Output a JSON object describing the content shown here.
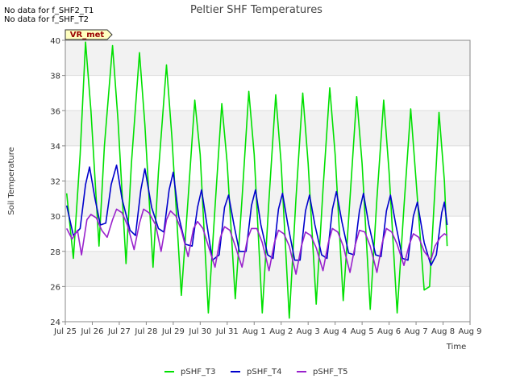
{
  "notes": [
    "No data for f_SHF2_T1",
    "No data for f_SHF_T2"
  ],
  "badge": "VR_met",
  "chart_data": {
    "type": "line",
    "title": "Peltier SHF Temperatures",
    "xlabel": "Time",
    "ylabel": "Soil Temperature",
    "xlim": [
      0,
      15
    ],
    "ylim": [
      24,
      40
    ],
    "yticks": [
      24,
      26,
      28,
      30,
      32,
      34,
      36,
      38,
      40
    ],
    "xticks": [
      {
        "label": "Jul 25",
        "x": 0
      },
      {
        "label": "Jul 26",
        "x": 1
      },
      {
        "label": "Jul 27",
        "x": 2
      },
      {
        "label": "Jul 28",
        "x": 3
      },
      {
        "label": "Jul 29",
        "x": 4
      },
      {
        "label": "Jul 30",
        "x": 5
      },
      {
        "label": "Jul 31",
        "x": 6
      },
      {
        "label": "Aug 1",
        "x": 7
      },
      {
        "label": "Aug 2",
        "x": 8
      },
      {
        "label": "Aug 3",
        "x": 9
      },
      {
        "label": "Aug 4",
        "x": 10
      },
      {
        "label": "Aug 5",
        "x": 11
      },
      {
        "label": "Aug 6",
        "x": 12
      },
      {
        "label": "Aug 7",
        "x": 13
      },
      {
        "label": "Aug 8",
        "x": 14
      },
      {
        "label": "Aug 9",
        "x": 15
      }
    ],
    "grid": true,
    "legend_position": "bottom",
    "series": [
      {
        "name": "pSHF_T3",
        "color": "#00e000",
        "points": [
          [
            0.05,
            31.3
          ],
          [
            0.3,
            27.6
          ],
          [
            0.55,
            33.5
          ],
          [
            0.75,
            39.9
          ],
          [
            0.95,
            36.0
          ],
          [
            1.25,
            28.3
          ],
          [
            1.45,
            34.0
          ],
          [
            1.75,
            39.7
          ],
          [
            1.95,
            35.5
          ],
          [
            2.25,
            27.3
          ],
          [
            2.45,
            33.0
          ],
          [
            2.75,
            39.3
          ],
          [
            2.95,
            35.2
          ],
          [
            3.25,
            27.1
          ],
          [
            3.45,
            32.5
          ],
          [
            3.75,
            38.6
          ],
          [
            3.95,
            34.5
          ],
          [
            4.3,
            25.5
          ],
          [
            4.55,
            31.0
          ],
          [
            4.8,
            36.6
          ],
          [
            5.0,
            33.5
          ],
          [
            5.3,
            24.5
          ],
          [
            5.55,
            30.5
          ],
          [
            5.8,
            36.4
          ],
          [
            6.0,
            33.0
          ],
          [
            6.3,
            25.3
          ],
          [
            6.55,
            31.0
          ],
          [
            6.8,
            37.1
          ],
          [
            7.0,
            33.5
          ],
          [
            7.3,
            24.5
          ],
          [
            7.55,
            31.0
          ],
          [
            7.8,
            36.9
          ],
          [
            8.0,
            33.0
          ],
          [
            8.3,
            24.2
          ],
          [
            8.55,
            31.0
          ],
          [
            8.8,
            37.0
          ],
          [
            9.0,
            33.0
          ],
          [
            9.3,
            25.0
          ],
          [
            9.55,
            31.5
          ],
          [
            9.8,
            37.3
          ],
          [
            10.0,
            33.5
          ],
          [
            10.3,
            25.2
          ],
          [
            10.55,
            31.0
          ],
          [
            10.8,
            36.8
          ],
          [
            11.0,
            33.0
          ],
          [
            11.3,
            24.7
          ],
          [
            11.55,
            31.0
          ],
          [
            11.8,
            36.6
          ],
          [
            12.0,
            32.5
          ],
          [
            12.3,
            24.5
          ],
          [
            12.55,
            30.5
          ],
          [
            12.8,
            36.1
          ],
          [
            13.0,
            32.0
          ],
          [
            13.3,
            25.8
          ],
          [
            13.5,
            26.0
          ],
          [
            13.75,
            33.0
          ],
          [
            13.85,
            35.9
          ],
          [
            14.05,
            32.0
          ],
          [
            14.15,
            28.3
          ]
        ]
      },
      {
        "name": "pSHF_T4",
        "color": "#0000cc",
        "points": [
          [
            0.05,
            30.6
          ],
          [
            0.3,
            28.9
          ],
          [
            0.55,
            29.3
          ],
          [
            0.75,
            31.8
          ],
          [
            0.9,
            32.8
          ],
          [
            1.1,
            31.0
          ],
          [
            1.3,
            29.5
          ],
          [
            1.5,
            29.6
          ],
          [
            1.7,
            31.8
          ],
          [
            1.9,
            32.9
          ],
          [
            2.1,
            31.0
          ],
          [
            2.4,
            29.2
          ],
          [
            2.6,
            28.9
          ],
          [
            2.8,
            31.5
          ],
          [
            2.95,
            32.7
          ],
          [
            3.2,
            30.5
          ],
          [
            3.45,
            29.3
          ],
          [
            3.65,
            29.1
          ],
          [
            3.85,
            31.5
          ],
          [
            4.0,
            32.5
          ],
          [
            4.2,
            30.0
          ],
          [
            4.45,
            28.4
          ],
          [
            4.7,
            28.3
          ],
          [
            4.9,
            30.5
          ],
          [
            5.05,
            31.5
          ],
          [
            5.25,
            29.5
          ],
          [
            5.45,
            27.5
          ],
          [
            5.7,
            27.8
          ],
          [
            5.9,
            30.5
          ],
          [
            6.05,
            31.2
          ],
          [
            6.25,
            29.5
          ],
          [
            6.45,
            28.0
          ],
          [
            6.7,
            28.0
          ],
          [
            6.9,
            30.6
          ],
          [
            7.05,
            31.5
          ],
          [
            7.25,
            29.5
          ],
          [
            7.5,
            27.8
          ],
          [
            7.7,
            27.6
          ],
          [
            7.9,
            30.4
          ],
          [
            8.05,
            31.3
          ],
          [
            8.25,
            29.5
          ],
          [
            8.5,
            27.5
          ],
          [
            8.7,
            27.5
          ],
          [
            8.9,
            30.3
          ],
          [
            9.05,
            31.2
          ],
          [
            9.25,
            29.5
          ],
          [
            9.5,
            27.8
          ],
          [
            9.7,
            27.6
          ],
          [
            9.9,
            30.4
          ],
          [
            10.05,
            31.4
          ],
          [
            10.25,
            29.7
          ],
          [
            10.5,
            27.9
          ],
          [
            10.7,
            27.8
          ],
          [
            10.9,
            30.3
          ],
          [
            11.05,
            31.3
          ],
          [
            11.25,
            29.5
          ],
          [
            11.5,
            27.8
          ],
          [
            11.7,
            27.7
          ],
          [
            11.9,
            30.3
          ],
          [
            12.05,
            31.2
          ],
          [
            12.25,
            29.5
          ],
          [
            12.5,
            27.6
          ],
          [
            12.7,
            27.5
          ],
          [
            12.9,
            30.0
          ],
          [
            13.05,
            30.8
          ],
          [
            13.3,
            28.5
          ],
          [
            13.55,
            27.2
          ],
          [
            13.75,
            27.8
          ],
          [
            13.95,
            30.2
          ],
          [
            14.05,
            30.8
          ],
          [
            14.15,
            29.5
          ]
        ]
      },
      {
        "name": "pSHF_T5",
        "color": "#9922cc",
        "points": [
          [
            0.05,
            29.3
          ],
          [
            0.25,
            28.7
          ],
          [
            0.45,
            29.2
          ],
          [
            0.6,
            27.8
          ],
          [
            0.8,
            29.8
          ],
          [
            0.95,
            30.1
          ],
          [
            1.15,
            29.9
          ],
          [
            1.35,
            29.2
          ],
          [
            1.55,
            28.8
          ],
          [
            1.75,
            29.8
          ],
          [
            1.9,
            30.4
          ],
          [
            2.1,
            30.2
          ],
          [
            2.3,
            29.5
          ],
          [
            2.55,
            28.1
          ],
          [
            2.75,
            29.6
          ],
          [
            2.9,
            30.4
          ],
          [
            3.1,
            30.2
          ],
          [
            3.35,
            29.5
          ],
          [
            3.55,
            28.0
          ],
          [
            3.75,
            29.8
          ],
          [
            3.9,
            30.3
          ],
          [
            4.1,
            30.0
          ],
          [
            4.3,
            29.2
          ],
          [
            4.55,
            27.7
          ],
          [
            4.75,
            29.3
          ],
          [
            4.9,
            29.7
          ],
          [
            5.1,
            29.3
          ],
          [
            5.3,
            28.3
          ],
          [
            5.55,
            27.1
          ],
          [
            5.75,
            28.8
          ],
          [
            5.9,
            29.4
          ],
          [
            6.1,
            29.2
          ],
          [
            6.3,
            28.3
          ],
          [
            6.55,
            27.1
          ],
          [
            6.75,
            28.7
          ],
          [
            6.9,
            29.3
          ],
          [
            7.1,
            29.3
          ],
          [
            7.3,
            28.5
          ],
          [
            7.55,
            26.9
          ],
          [
            7.75,
            28.5
          ],
          [
            7.9,
            29.2
          ],
          [
            8.1,
            29.0
          ],
          [
            8.3,
            28.3
          ],
          [
            8.55,
            26.7
          ],
          [
            8.75,
            28.3
          ],
          [
            8.9,
            29.1
          ],
          [
            9.1,
            28.9
          ],
          [
            9.3,
            28.2
          ],
          [
            9.55,
            26.9
          ],
          [
            9.75,
            28.5
          ],
          [
            9.9,
            29.3
          ],
          [
            10.1,
            29.1
          ],
          [
            10.3,
            28.3
          ],
          [
            10.55,
            26.8
          ],
          [
            10.75,
            28.4
          ],
          [
            10.9,
            29.2
          ],
          [
            11.1,
            29.1
          ],
          [
            11.3,
            28.3
          ],
          [
            11.55,
            26.8
          ],
          [
            11.75,
            28.5
          ],
          [
            11.9,
            29.3
          ],
          [
            12.1,
            29.1
          ],
          [
            12.3,
            28.4
          ],
          [
            12.55,
            27.2
          ],
          [
            12.75,
            28.4
          ],
          [
            12.9,
            29.0
          ],
          [
            13.1,
            28.8
          ],
          [
            13.3,
            28.0
          ],
          [
            13.55,
            27.5
          ],
          [
            13.7,
            28.3
          ],
          [
            13.9,
            28.8
          ],
          [
            14.05,
            29.0
          ],
          [
            14.15,
            28.9
          ]
        ]
      }
    ]
  }
}
